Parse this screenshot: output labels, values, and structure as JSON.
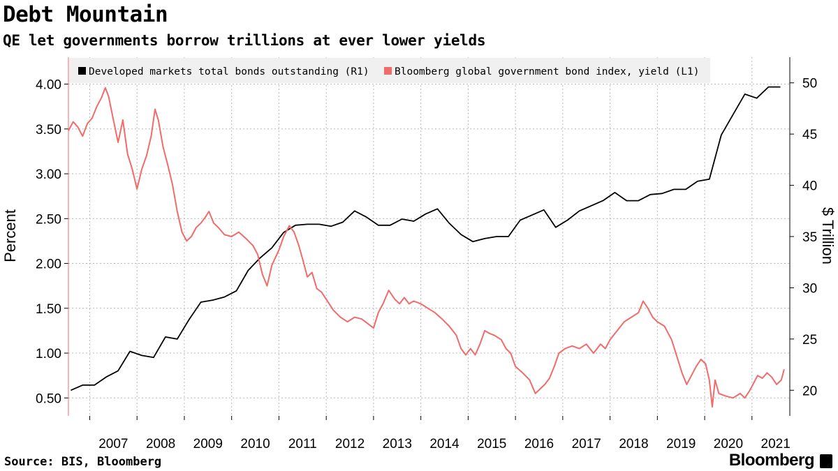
{
  "title": "Debt Mountain",
  "subtitle": "QE let governments borrow trillions at ever lower yields",
  "source": "Source: BIS, Bloomberg",
  "brand": "Bloomberg",
  "colors": {
    "series_bonds": "#000000",
    "series_yield": "#f26b6b",
    "grid": "#b8b8b8"
  },
  "chart_data": {
    "type": "line",
    "title": "Debt Mountain",
    "subtitle": "QE let governments borrow trillions at ever lower yields",
    "x_ticks": [
      "2007",
      "2008",
      "2009",
      "2010",
      "2011",
      "2012",
      "2013",
      "2014",
      "2015",
      "2016",
      "2017",
      "2018",
      "2019",
      "2020",
      "2021"
    ],
    "xlim": [
      2006.55,
      2021.8
    ],
    "y_left": {
      "label": "Percent",
      "lim": [
        0.3,
        4.3
      ],
      "ticks": [
        "0.50",
        "1.00",
        "1.50",
        "2.00",
        "2.50",
        "3.00",
        "3.50",
        "4.00"
      ]
    },
    "y_right": {
      "label": "$ Trillion",
      "lim": [
        17.5,
        52.5
      ],
      "ticks": [
        "20",
        "25",
        "30",
        "35",
        "40",
        "45",
        "50"
      ]
    },
    "grid": true,
    "legend_position": "top",
    "series": [
      {
        "name": "Developed markets total bonds outstanding (R1)",
        "axis": "right",
        "color": "#000000",
        "points": [
          [
            2006.6,
            20.0
          ],
          [
            2006.85,
            20.5
          ],
          [
            2007.1,
            20.5
          ],
          [
            2007.35,
            21.3
          ],
          [
            2007.6,
            21.9
          ],
          [
            2007.85,
            23.8
          ],
          [
            2008.1,
            23.4
          ],
          [
            2008.35,
            23.2
          ],
          [
            2008.6,
            25.2
          ],
          [
            2008.85,
            25.0
          ],
          [
            2009.1,
            26.9
          ],
          [
            2009.35,
            28.6
          ],
          [
            2009.6,
            28.8
          ],
          [
            2009.85,
            29.1
          ],
          [
            2010.1,
            29.7
          ],
          [
            2010.35,
            31.7
          ],
          [
            2010.6,
            32.9
          ],
          [
            2010.85,
            33.9
          ],
          [
            2011.1,
            35.4
          ],
          [
            2011.35,
            36.1
          ],
          [
            2011.6,
            36.2
          ],
          [
            2011.85,
            36.2
          ],
          [
            2012.1,
            36.0
          ],
          [
            2012.35,
            36.4
          ],
          [
            2012.6,
            37.5
          ],
          [
            2012.85,
            36.9
          ],
          [
            2013.1,
            36.1
          ],
          [
            2013.35,
            36.1
          ],
          [
            2013.6,
            36.7
          ],
          [
            2013.85,
            36.5
          ],
          [
            2014.1,
            37.2
          ],
          [
            2014.35,
            37.7
          ],
          [
            2014.6,
            36.3
          ],
          [
            2014.85,
            35.2
          ],
          [
            2015.1,
            34.5
          ],
          [
            2015.35,
            34.8
          ],
          [
            2015.6,
            35.0
          ],
          [
            2015.85,
            35.0
          ],
          [
            2016.1,
            36.6
          ],
          [
            2016.35,
            37.1
          ],
          [
            2016.6,
            37.6
          ],
          [
            2016.85,
            35.9
          ],
          [
            2017.1,
            36.6
          ],
          [
            2017.35,
            37.5
          ],
          [
            2017.6,
            38.0
          ],
          [
            2017.85,
            38.5
          ],
          [
            2018.1,
            39.3
          ],
          [
            2018.35,
            38.5
          ],
          [
            2018.6,
            38.5
          ],
          [
            2018.85,
            39.1
          ],
          [
            2019.1,
            39.2
          ],
          [
            2019.35,
            39.6
          ],
          [
            2019.6,
            39.6
          ],
          [
            2019.85,
            40.4
          ],
          [
            2020.1,
            40.6
          ],
          [
            2020.35,
            44.9
          ],
          [
            2020.6,
            46.9
          ],
          [
            2020.85,
            48.9
          ],
          [
            2021.1,
            48.5
          ],
          [
            2021.35,
            49.6
          ],
          [
            2021.6,
            49.6
          ]
        ]
      },
      {
        "name": "Bloomberg global government bond index, yield (L1)",
        "axis": "left",
        "color": "#f26b6b",
        "points": [
          [
            2006.55,
            3.48
          ],
          [
            2006.65,
            3.58
          ],
          [
            2006.75,
            3.52
          ],
          [
            2006.85,
            3.42
          ],
          [
            2006.95,
            3.56
          ],
          [
            2007.05,
            3.62
          ],
          [
            2007.15,
            3.75
          ],
          [
            2007.25,
            3.85
          ],
          [
            2007.33,
            3.96
          ],
          [
            2007.4,
            3.86
          ],
          [
            2007.5,
            3.6
          ],
          [
            2007.6,
            3.35
          ],
          [
            2007.7,
            3.6
          ],
          [
            2007.8,
            3.22
          ],
          [
            2007.9,
            3.05
          ],
          [
            2008.0,
            2.83
          ],
          [
            2008.1,
            3.05
          ],
          [
            2008.2,
            3.2
          ],
          [
            2008.3,
            3.42
          ],
          [
            2008.38,
            3.72
          ],
          [
            2008.45,
            3.6
          ],
          [
            2008.55,
            3.3
          ],
          [
            2008.65,
            3.1
          ],
          [
            2008.75,
            2.88
          ],
          [
            2008.85,
            2.58
          ],
          [
            2008.95,
            2.35
          ],
          [
            2009.05,
            2.25
          ],
          [
            2009.15,
            2.3
          ],
          [
            2009.25,
            2.4
          ],
          [
            2009.35,
            2.45
          ],
          [
            2009.45,
            2.52
          ],
          [
            2009.52,
            2.58
          ],
          [
            2009.62,
            2.45
          ],
          [
            2009.72,
            2.4
          ],
          [
            2009.85,
            2.32
          ],
          [
            2010.0,
            2.3
          ],
          [
            2010.15,
            2.35
          ],
          [
            2010.3,
            2.28
          ],
          [
            2010.45,
            2.2
          ],
          [
            2010.55,
            2.1
          ],
          [
            2010.65,
            1.88
          ],
          [
            2010.75,
            1.75
          ],
          [
            2010.85,
            1.98
          ],
          [
            2011.0,
            2.15
          ],
          [
            2011.1,
            2.3
          ],
          [
            2011.22,
            2.42
          ],
          [
            2011.32,
            2.35
          ],
          [
            2011.42,
            2.2
          ],
          [
            2011.5,
            2.05
          ],
          [
            2011.6,
            1.85
          ],
          [
            2011.7,
            1.9
          ],
          [
            2011.8,
            1.72
          ],
          [
            2011.9,
            1.68
          ],
          [
            2012.0,
            1.6
          ],
          [
            2012.15,
            1.48
          ],
          [
            2012.3,
            1.4
          ],
          [
            2012.45,
            1.35
          ],
          [
            2012.6,
            1.4
          ],
          [
            2012.75,
            1.38
          ],
          [
            2012.9,
            1.32
          ],
          [
            2013.0,
            1.28
          ],
          [
            2013.1,
            1.45
          ],
          [
            2013.2,
            1.55
          ],
          [
            2013.32,
            1.7
          ],
          [
            2013.45,
            1.6
          ],
          [
            2013.55,
            1.55
          ],
          [
            2013.65,
            1.62
          ],
          [
            2013.75,
            1.55
          ],
          [
            2013.85,
            1.58
          ],
          [
            2014.0,
            1.55
          ],
          [
            2014.15,
            1.5
          ],
          [
            2014.3,
            1.45
          ],
          [
            2014.45,
            1.38
          ],
          [
            2014.6,
            1.3
          ],
          [
            2014.75,
            1.2
          ],
          [
            2014.85,
            1.05
          ],
          [
            2014.95,
            0.98
          ],
          [
            2015.05,
            1.05
          ],
          [
            2015.15,
            0.98
          ],
          [
            2015.25,
            1.1
          ],
          [
            2015.35,
            1.25
          ],
          [
            2015.45,
            1.22
          ],
          [
            2015.55,
            1.2
          ],
          [
            2015.7,
            1.15
          ],
          [
            2015.8,
            1.05
          ],
          [
            2015.9,
            1.0
          ],
          [
            2016.0,
            0.85
          ],
          [
            2016.15,
            0.78
          ],
          [
            2016.3,
            0.7
          ],
          [
            2016.42,
            0.55
          ],
          [
            2016.52,
            0.6
          ],
          [
            2016.62,
            0.65
          ],
          [
            2016.72,
            0.72
          ],
          [
            2016.82,
            0.85
          ],
          [
            2016.92,
            1.0
          ],
          [
            2017.05,
            1.05
          ],
          [
            2017.2,
            1.08
          ],
          [
            2017.35,
            1.05
          ],
          [
            2017.5,
            1.1
          ],
          [
            2017.65,
            1.0
          ],
          [
            2017.8,
            1.1
          ],
          [
            2017.9,
            1.05
          ],
          [
            2018.0,
            1.15
          ],
          [
            2018.15,
            1.25
          ],
          [
            2018.3,
            1.35
          ],
          [
            2018.45,
            1.4
          ],
          [
            2018.6,
            1.45
          ],
          [
            2018.7,
            1.58
          ],
          [
            2018.8,
            1.5
          ],
          [
            2018.9,
            1.4
          ],
          [
            2019.0,
            1.35
          ],
          [
            2019.15,
            1.3
          ],
          [
            2019.3,
            1.15
          ],
          [
            2019.42,
            0.95
          ],
          [
            2019.52,
            0.78
          ],
          [
            2019.62,
            0.65
          ],
          [
            2019.72,
            0.75
          ],
          [
            2019.82,
            0.85
          ],
          [
            2019.92,
            0.93
          ],
          [
            2020.02,
            0.88
          ],
          [
            2020.1,
            0.7
          ],
          [
            2020.16,
            0.4
          ],
          [
            2020.22,
            0.7
          ],
          [
            2020.3,
            0.55
          ],
          [
            2020.45,
            0.52
          ],
          [
            2020.6,
            0.5
          ],
          [
            2020.75,
            0.55
          ],
          [
            2020.85,
            0.5
          ],
          [
            2020.95,
            0.58
          ],
          [
            2021.02,
            0.65
          ],
          [
            2021.12,
            0.75
          ],
          [
            2021.22,
            0.72
          ],
          [
            2021.32,
            0.78
          ],
          [
            2021.42,
            0.73
          ],
          [
            2021.52,
            0.65
          ],
          [
            2021.62,
            0.7
          ],
          [
            2021.68,
            0.82
          ]
        ]
      }
    ]
  }
}
